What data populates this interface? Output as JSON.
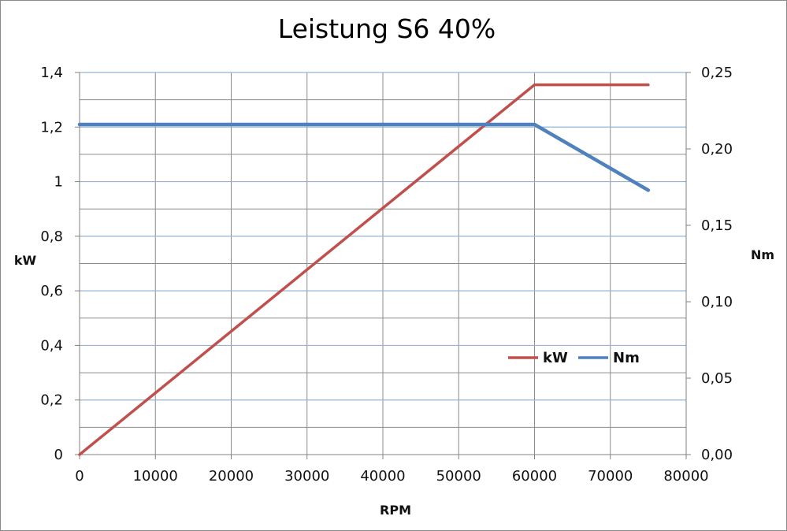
{
  "chart_data": {
    "type": "line",
    "title": "Leistung S6 40%",
    "xlabel": "RPM",
    "ylabel_left": "kW",
    "ylabel_right": "Nm",
    "xlim": [
      0,
      80000
    ],
    "ylim_left": [
      0,
      1.4
    ],
    "ylim_right": [
      0,
      0.25
    ],
    "x_ticks": [
      "0",
      "10000",
      "20000",
      "30000",
      "40000",
      "50000",
      "60000",
      "70000",
      "80000"
    ],
    "y_left_ticks": [
      "0",
      "0,2",
      "0,4",
      "0,6",
      "0,8",
      "1",
      "1,2",
      "1,4"
    ],
    "y_right_ticks": [
      "0,00",
      "0,05",
      "0,10",
      "0,15",
      "0,20",
      "0,25"
    ],
    "grid": true,
    "legend_position": "lower-right",
    "series": [
      {
        "name": "kW",
        "axis": "left",
        "color": "#c0504d",
        "x": [
          0,
          60000,
          75000
        ],
        "y": [
          0,
          1.355,
          1.355
        ]
      },
      {
        "name": "Nm",
        "axis": "right",
        "color": "#4f81bd",
        "x": [
          0,
          60000,
          75000
        ],
        "y": [
          0.216,
          0.216,
          0.173
        ]
      }
    ]
  }
}
